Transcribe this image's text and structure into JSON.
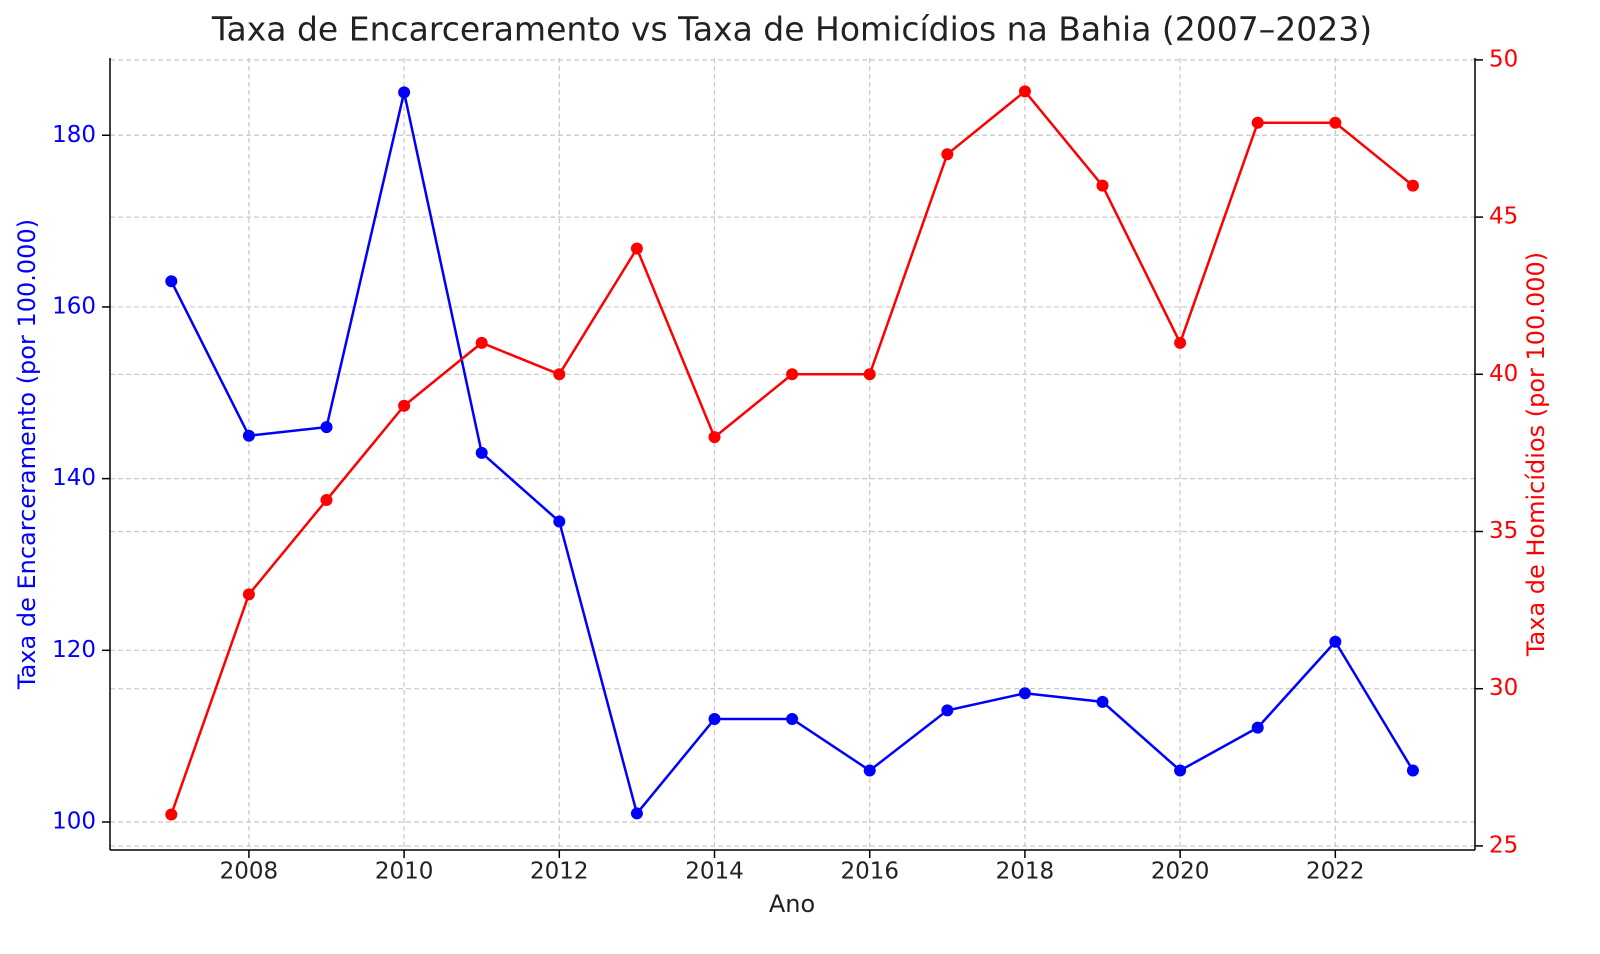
{
  "chart_data": {
    "type": "line",
    "title": "Taxa de Encarceramento vs Taxa de Homicídios na Bahia (2007–2023)",
    "x_label": "Ano",
    "y_label": "Taxa de Encarceramento (por 100.000)",
    "y2_label": "Taxa de Homicídios (por 100.000)",
    "x": [
      2007,
      2008,
      2009,
      2010,
      2011,
      2012,
      2013,
      2014,
      2015,
      2016,
      2017,
      2018,
      2019,
      2020,
      2021,
      2022,
      2023
    ],
    "series": [
      {
        "name": "Taxa de Encarceramento",
        "color": "#0000ff",
        "values": [
          163,
          145,
          146,
          185,
          143,
          135,
          101,
          112,
          112,
          106,
          113,
          115,
          114,
          106,
          111,
          121,
          106
        ]
      },
      {
        "name": "Taxa de Homicídios",
        "color": "#ff0000",
        "axis": "y2",
        "values": [
          26,
          33,
          36,
          39,
          41,
          40,
          44,
          38,
          40,
          40,
          47,
          49,
          46,
          41,
          48,
          48,
          46
        ]
      }
    ],
    "xlim": [
      2006.21,
      2023.8
    ],
    "xticks": [
      2008,
      2010,
      2012,
      2014,
      2016,
      2018,
      2020,
      2022
    ],
    "ylim": [
      96.74,
      189.0
    ],
    "yticks": [
      100,
      120,
      140,
      160,
      180
    ],
    "y2lim": [
      24.87,
      50.06
    ],
    "y2ticks": [
      25,
      30,
      35,
      40,
      45,
      50
    ],
    "grid": true
  }
}
